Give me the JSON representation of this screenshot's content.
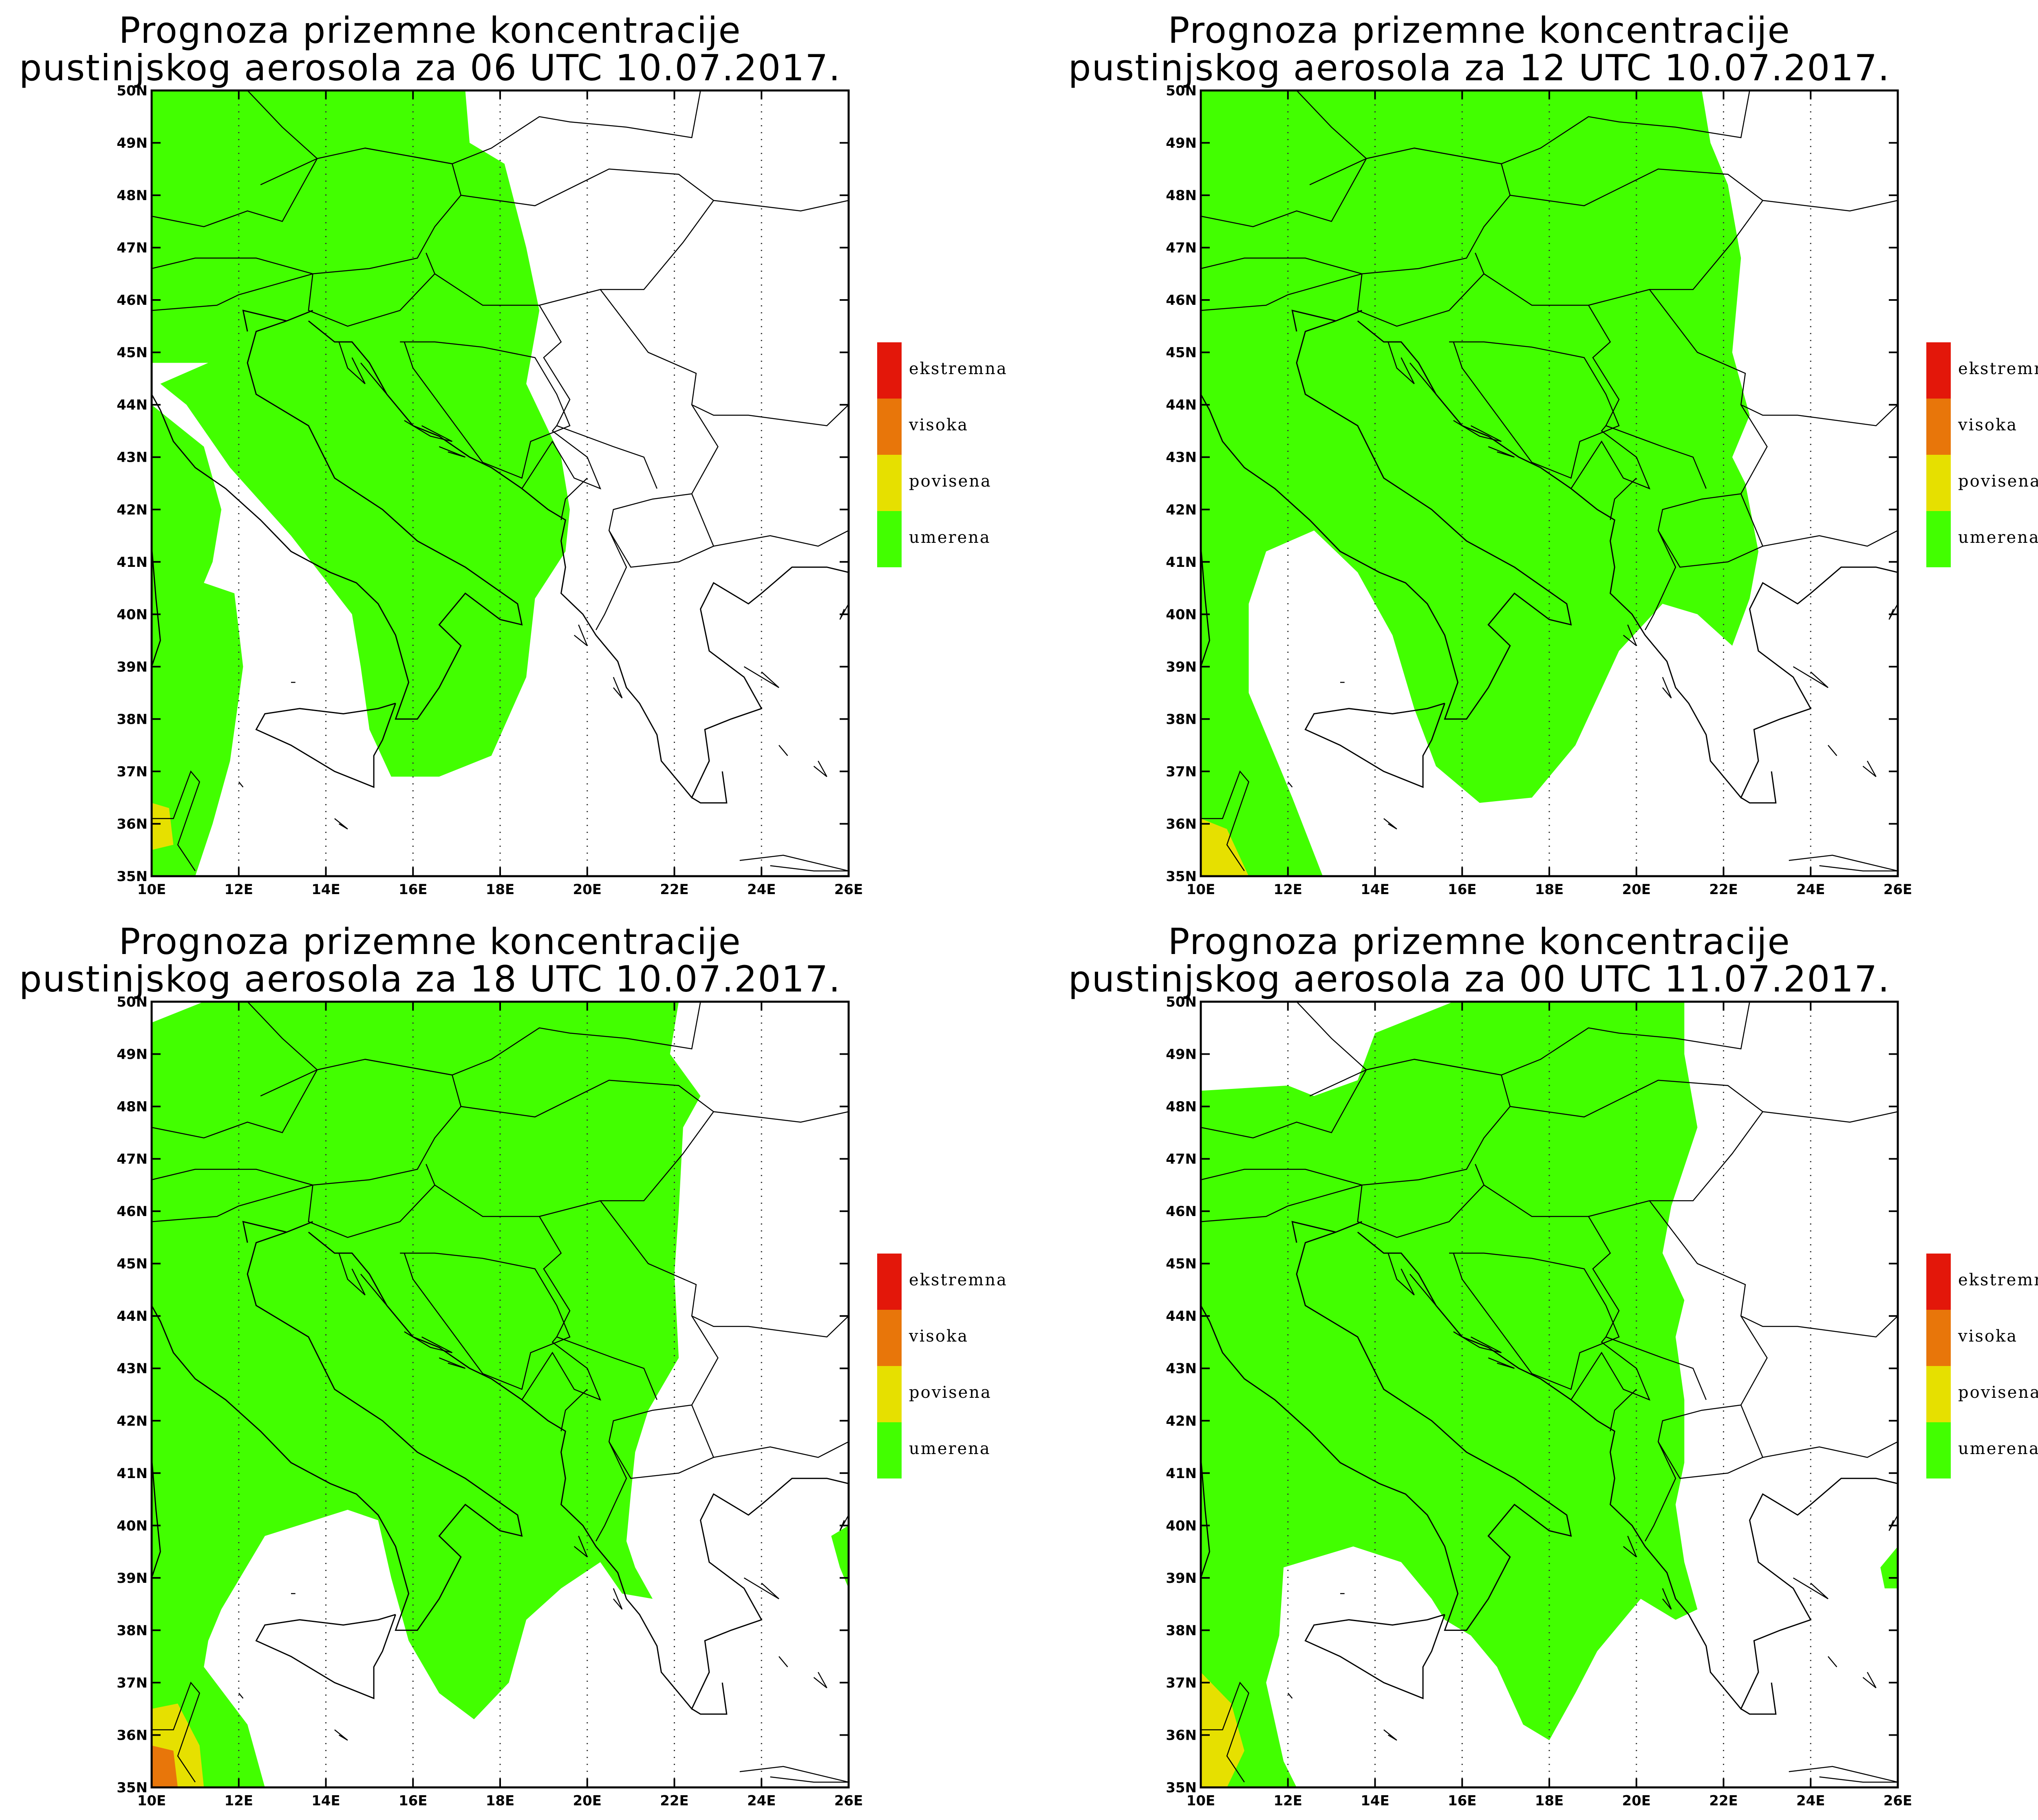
{
  "map_meta": {
    "lon_ticks": [
      "10E",
      "12E",
      "14E",
      "16E",
      "18E",
      "20E",
      "22E",
      "24E",
      "26E"
    ],
    "lat_ticks": [
      "35N",
      "36N",
      "37N",
      "38N",
      "39N",
      "40N",
      "41N",
      "42N",
      "43N",
      "44N",
      "45N",
      "46N",
      "47N",
      "48N",
      "49N",
      "50N"
    ],
    "lon_range": [
      10,
      26
    ],
    "lat_range": [
      35,
      50
    ],
    "grid": "dotted-meridians"
  },
  "legend": {
    "items": [
      {
        "label": "ekstremna",
        "color": "#e3170a"
      },
      {
        "label": "visoka",
        "color": "#e8760a"
      },
      {
        "label": "povisena",
        "color": "#e6e000"
      },
      {
        "label": "umerena",
        "color": "#42ff00"
      }
    ]
  },
  "panels": [
    {
      "title_line1": "Prognoza prizemne koncentracije",
      "title_line2": "pustinjskog aerosola za 06 UTC 10.07.2017."
    },
    {
      "title_line1": "Prognoza prizemne koncentracije",
      "title_line2": "pustinjskog aerosola za 12 UTC 10.07.2017."
    },
    {
      "title_line1": "Prognoza prizemne koncentracije",
      "title_line2": "pustinjskog aerosola za 18 UTC 10.07.2017."
    },
    {
      "title_line1": "Prognoza prizemne koncentracije",
      "title_line2": "pustinjskog aerosola za 00 UTC 11.07.2017."
    }
  ]
}
